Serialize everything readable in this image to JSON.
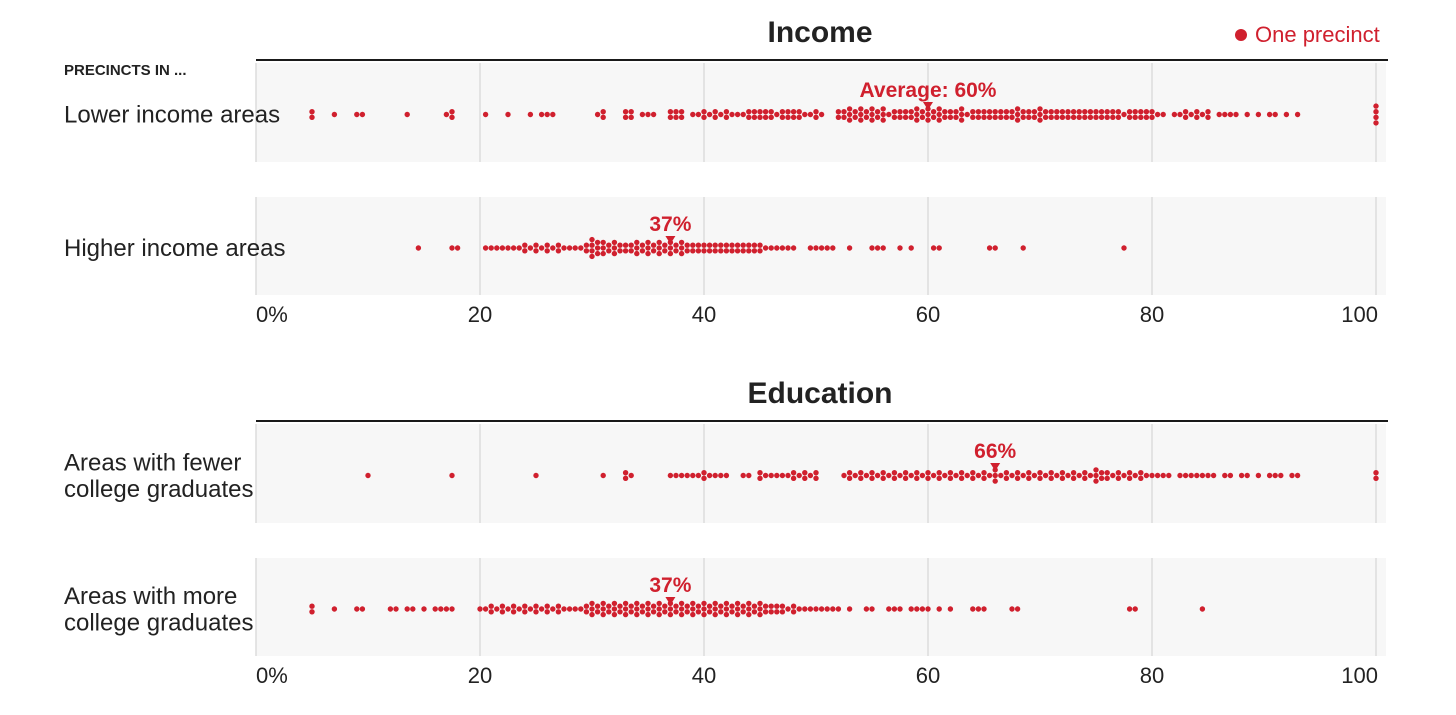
{
  "legend": {
    "label": "One precinct"
  },
  "row_header": "PRECINCTS IN ...",
  "colors": {
    "dot": "#d0202e",
    "panel": "#f7f7f7",
    "grid": "#dcdcdc",
    "text": "#222222",
    "rule": "#1a1a1a"
  },
  "chart_data": [
    {
      "type": "scatter",
      "subtype": "beeswarm",
      "title": "Income",
      "xlim": [
        0,
        100
      ],
      "tick_labels": [
        "0%",
        "20",
        "40",
        "60",
        "80",
        "100"
      ],
      "series": [
        {
          "label": "Lower income areas",
          "average": 60,
          "average_label": "Average: 60%",
          "values": [
            5,
            5,
            7,
            9,
            9.5,
            13.5,
            17,
            17.5,
            17.5,
            20.5,
            22.5,
            24.5,
            25.5,
            26,
            26.5,
            30.5,
            31,
            31,
            33,
            33,
            33.5,
            33.5,
            34.5,
            35,
            35.5,
            37,
            37,
            37.5,
            37.5,
            38,
            38,
            39,
            39.5,
            40,
            40,
            40.5,
            41,
            41,
            41.5,
            42,
            42,
            42.5,
            43,
            43.5,
            44,
            44,
            44.5,
            44.5,
            45,
            45,
            45.5,
            45.5,
            46,
            46,
            46.5,
            47,
            47,
            47.5,
            47.5,
            48,
            48,
            48.5,
            48.5,
            49,
            49.5,
            50,
            50,
            50.5,
            52,
            52,
            52.5,
            52.5,
            53,
            53,
            53,
            53.5,
            53.5,
            54,
            54,
            54,
            54.5,
            54.5,
            55,
            55,
            55,
            55.5,
            55.5,
            56,
            56,
            56,
            56.5,
            57,
            57,
            57.5,
            57.5,
            58,
            58,
            58.5,
            58.5,
            59,
            59,
            59,
            59.5,
            59.5,
            60,
            60,
            60,
            60.5,
            60.5,
            61,
            61,
            61,
            61.5,
            61.5,
            62,
            62,
            62.5,
            62.5,
            63,
            63,
            63,
            63.5,
            64,
            64,
            64.5,
            64.5,
            65,
            65,
            65.5,
            65.5,
            66,
            66,
            66.5,
            66.5,
            67,
            67,
            67.5,
            67.5,
            68,
            68,
            68,
            68.5,
            68.5,
            69,
            69,
            69.5,
            69.5,
            70,
            70,
            70,
            70.5,
            70.5,
            71,
            71,
            71.5,
            71.5,
            72,
            72,
            72.5,
            72.5,
            73,
            73,
            73.5,
            73.5,
            74,
            74,
            74.5,
            74.5,
            75,
            75,
            75.5,
            75.5,
            76,
            76,
            76.5,
            76.5,
            77,
            77,
            77.5,
            78,
            78,
            78.5,
            78.5,
            79,
            79,
            79.5,
            79.5,
            80,
            80,
            80.5,
            81,
            82,
            82.5,
            83,
            83,
            83.5,
            84,
            84,
            84.5,
            85,
            85,
            86,
            86.5,
            87,
            87.5,
            88.5,
            89.5,
            90.5,
            91,
            92,
            93,
            100,
            100,
            100,
            100
          ]
        },
        {
          "label": "Higher income areas",
          "average": 37,
          "average_label": "37%",
          "values": [
            14.5,
            17.5,
            18,
            20.5,
            21,
            21.5,
            22,
            22.5,
            23,
            23.5,
            24,
            24,
            24.5,
            25,
            25,
            25.5,
            26,
            26,
            26.5,
            27,
            27,
            27.5,
            28,
            28.5,
            29,
            29.5,
            29.5,
            30,
            30,
            30,
            30,
            30.5,
            30.5,
            30.5,
            31,
            31,
            31,
            31.5,
            31.5,
            32,
            32,
            32,
            32.5,
            32.5,
            33,
            33,
            33.5,
            33.5,
            34,
            34,
            34,
            34.5,
            34.5,
            35,
            35,
            35,
            35.5,
            35.5,
            36,
            36,
            36,
            36.5,
            36.5,
            37,
            37,
            37,
            37.5,
            37.5,
            38,
            38,
            38,
            38.5,
            38.5,
            39,
            39,
            39.5,
            39.5,
            40,
            40,
            40.5,
            40.5,
            41,
            41,
            41.5,
            41.5,
            42,
            42,
            42.5,
            42.5,
            43,
            43,
            43.5,
            43.5,
            44,
            44,
            44.5,
            44.5,
            45,
            45,
            45.5,
            46,
            46.5,
            47,
            47.5,
            48,
            49.5,
            50,
            50.5,
            51,
            51.5,
            53,
            55,
            55.5,
            56,
            57.5,
            58.5,
            60.5,
            61,
            65.5,
            66,
            68.5,
            77.5
          ]
        }
      ]
    },
    {
      "type": "scatter",
      "subtype": "beeswarm",
      "title": "Education",
      "xlim": [
        0,
        100
      ],
      "tick_labels": [
        "0%",
        "20",
        "40",
        "60",
        "80",
        "100"
      ],
      "series": [
        {
          "label": "Areas with fewer college graduates",
          "average": 66,
          "average_label": "66%",
          "values": [
            10,
            17.5,
            25,
            31,
            33,
            33,
            33.5,
            37,
            37.5,
            38,
            38.5,
            39,
            39.5,
            40,
            40,
            40.5,
            41,
            41.5,
            42,
            43.5,
            44,
            45,
            45,
            45.5,
            46,
            46.5,
            47,
            47.5,
            48,
            48,
            48.5,
            49,
            49,
            49.5,
            50,
            50,
            52.5,
            53,
            53,
            53.5,
            54,
            54,
            54.5,
            55,
            55,
            55.5,
            56,
            56,
            56.5,
            57,
            57,
            57.5,
            58,
            58,
            58.5,
            59,
            59,
            59.5,
            60,
            60,
            60.5,
            61,
            61,
            61.5,
            62,
            62,
            62.5,
            63,
            63,
            63.5,
            64,
            64,
            64.5,
            65,
            65,
            65.5,
            66,
            66,
            66,
            66.5,
            67,
            67,
            67.5,
            68,
            68,
            68.5,
            69,
            69,
            69.5,
            70,
            70,
            70.5,
            71,
            71,
            71.5,
            72,
            72,
            72.5,
            73,
            73,
            73.5,
            74,
            74,
            74.5,
            75,
            75,
            75,
            75.5,
            75.5,
            76,
            76,
            76.5,
            77,
            77,
            77.5,
            78,
            78,
            78.5,
            79,
            79,
            79.5,
            80,
            80.5,
            81,
            81.5,
            82.5,
            83,
            83.5,
            84,
            84.5,
            85,
            85.5,
            86.5,
            87,
            88,
            88.5,
            89.5,
            90.5,
            91,
            91.5,
            92.5,
            93,
            100,
            100
          ]
        },
        {
          "label": "Areas with more college graduates",
          "average": 37,
          "average_label": "37%",
          "values": [
            5,
            5,
            7,
            9,
            9.5,
            12,
            12.5,
            13.5,
            14,
            15,
            16,
            16.5,
            17,
            17.5,
            20,
            20.5,
            21,
            21,
            21.5,
            22,
            22,
            22.5,
            23,
            23,
            23.5,
            24,
            24,
            24.5,
            25,
            25,
            25.5,
            26,
            26,
            26.5,
            27,
            27,
            27.5,
            28,
            28.5,
            29,
            29.5,
            29.5,
            30,
            30,
            30,
            30.5,
            30.5,
            31,
            31,
            31,
            31.5,
            31.5,
            32,
            32,
            32,
            32.5,
            32.5,
            33,
            33,
            33,
            33.5,
            33.5,
            34,
            34,
            34,
            34.5,
            34.5,
            35,
            35,
            35,
            35.5,
            35.5,
            36,
            36,
            36,
            36.5,
            36.5,
            37,
            37,
            37,
            37.5,
            37.5,
            38,
            38,
            38,
            38.5,
            38.5,
            39,
            39,
            39,
            39.5,
            39.5,
            40,
            40,
            40,
            40.5,
            40.5,
            41,
            41,
            41,
            41.5,
            41.5,
            42,
            42,
            42,
            42.5,
            42.5,
            43,
            43,
            43,
            43.5,
            43.5,
            44,
            44,
            44,
            44.5,
            44.5,
            45,
            45,
            45,
            45.5,
            45.5,
            46,
            46,
            46.5,
            46.5,
            47,
            47,
            47.5,
            48,
            48,
            48.5,
            49,
            49.5,
            50,
            50.5,
            51,
            51.5,
            52,
            53,
            54.5,
            55,
            56.5,
            57,
            57.5,
            58.5,
            59,
            59.5,
            60,
            61,
            62,
            64,
            64.5,
            65,
            67.5,
            68,
            78,
            78.5,
            84.5
          ]
        }
      ]
    }
  ]
}
